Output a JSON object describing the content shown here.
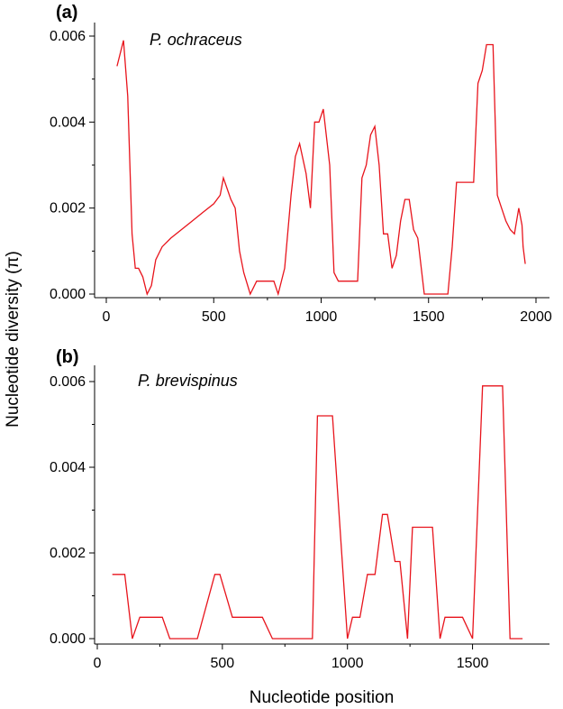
{
  "figure": {
    "ylabel": "Nucleotide diversity (π)",
    "xlabel": "Nucleotide position"
  },
  "chart_data": [
    {
      "type": "line",
      "panel_label": "(a)",
      "species": "P. ochraceus",
      "xlim": [
        0,
        2000
      ],
      "ylim": [
        0,
        0.006
      ],
      "xticks": [
        0,
        500,
        1000,
        1500,
        2000
      ],
      "yticks": [
        0.0,
        0.002,
        0.004,
        0.006
      ],
      "xtick_labels": [
        "0",
        "500",
        "1000",
        "1500",
        "2000"
      ],
      "ytick_labels": [
        "0.000",
        "0.002",
        "0.004",
        "0.006"
      ],
      "color": "#e8141c",
      "x": [
        50,
        80,
        100,
        120,
        135,
        150,
        170,
        190,
        210,
        230,
        260,
        300,
        350,
        400,
        450,
        500,
        530,
        545,
        580,
        600,
        620,
        640,
        670,
        700,
        730,
        760,
        780,
        800,
        830,
        860,
        880,
        900,
        930,
        950,
        970,
        990,
        1010,
        1040,
        1060,
        1080,
        1100,
        1120,
        1150,
        1170,
        1190,
        1210,
        1230,
        1250,
        1270,
        1290,
        1310,
        1330,
        1350,
        1370,
        1390,
        1410,
        1430,
        1450,
        1480,
        1500,
        1520,
        1560,
        1590,
        1610,
        1630,
        1660,
        1690,
        1710,
        1730,
        1750,
        1770,
        1800,
        1820,
        1840,
        1860,
        1880,
        1900,
        1920,
        1935,
        1940,
        1950
      ],
      "y": [
        0.0053,
        0.0059,
        0.0046,
        0.0014,
        0.0006,
        0.0006,
        0.0004,
        0.0,
        0.0002,
        0.0008,
        0.0011,
        0.0013,
        0.0015,
        0.0017,
        0.0019,
        0.0021,
        0.0023,
        0.0027,
        0.0022,
        0.002,
        0.001,
        0.0005,
        0.0,
        0.0003,
        0.0003,
        0.0003,
        0.0003,
        0.0,
        0.0006,
        0.0023,
        0.0032,
        0.0035,
        0.0028,
        0.002,
        0.004,
        0.004,
        0.0043,
        0.003,
        0.0005,
        0.0003,
        0.0003,
        0.0003,
        0.0003,
        0.0003,
        0.0027,
        0.003,
        0.0037,
        0.0039,
        0.003,
        0.0014,
        0.0014,
        0.0006,
        0.0009,
        0.0017,
        0.0022,
        0.0022,
        0.0015,
        0.0013,
        0.0,
        0.0,
        0.0,
        0.0,
        0.0,
        0.0011,
        0.0026,
        0.0026,
        0.0026,
        0.0026,
        0.0049,
        0.0052,
        0.0058,
        0.0058,
        0.0023,
        0.002,
        0.0017,
        0.0015,
        0.0014,
        0.002,
        0.0016,
        0.0011,
        0.0007
      ]
    },
    {
      "type": "line",
      "panel_label": "(b)",
      "species": "P. brevispinus",
      "xlim": [
        0,
        1750
      ],
      "ylim": [
        0,
        0.006
      ],
      "xticks": [
        0,
        500,
        1000,
        1500
      ],
      "yticks": [
        0.0,
        0.002,
        0.004,
        0.006
      ],
      "xtick_labels": [
        "0",
        "500",
        "1000",
        "1500"
      ],
      "ytick_labels": [
        "0.000",
        "0.002",
        "0.004",
        "0.006"
      ],
      "color": "#e8141c",
      "x": [
        60,
        110,
        140,
        170,
        200,
        260,
        290,
        400,
        470,
        490,
        540,
        560,
        660,
        700,
        860,
        880,
        940,
        1000,
        1020,
        1050,
        1080,
        1110,
        1140,
        1160,
        1190,
        1210,
        1240,
        1260,
        1300,
        1340,
        1370,
        1390,
        1420,
        1460,
        1500,
        1540,
        1580,
        1620,
        1650,
        1700
      ],
      "y": [
        0.0015,
        0.0015,
        0.0,
        0.0005,
        0.0005,
        0.0005,
        0.0,
        0.0,
        0.0015,
        0.0015,
        0.0005,
        0.0005,
        0.0005,
        0.0,
        0.0,
        0.0052,
        0.0052,
        0.0,
        0.0005,
        0.0005,
        0.0015,
        0.0015,
        0.0029,
        0.0029,
        0.0018,
        0.0018,
        0.0,
        0.0026,
        0.0026,
        0.0026,
        0.0,
        0.0005,
        0.0005,
        0.0005,
        0.0,
        0.0059,
        0.0059,
        0.0059,
        0.0,
        0.0
      ]
    }
  ]
}
